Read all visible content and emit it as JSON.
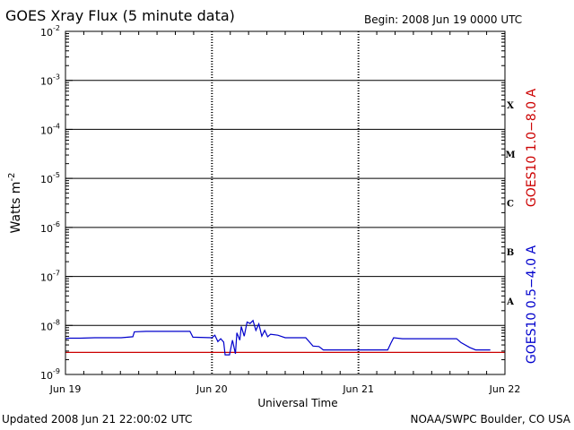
{
  "header": {
    "title": "GOES Xray Flux (5 minute data)",
    "begin": "Begin:  2008 Jun 19 0000 UTC"
  },
  "footer": {
    "updated": "Updated 2008 Jun 21 22:00:02 UTC",
    "credit": "NOAA/SWPC Boulder, CO USA"
  },
  "chart_data": {
    "type": "line",
    "title": "GOES Xray Flux (5 minute data)",
    "xlabel": "Universal Time",
    "ylabel": "Watts m",
    "ylabel_sup": "-2",
    "yscale": "log",
    "ylim": [
      1e-09,
      0.01
    ],
    "xlim": [
      "Jun 19",
      "Jun 22"
    ],
    "x_ticks": [
      "Jun 19",
      "Jun 20",
      "Jun 21",
      "Jun 22"
    ],
    "y_ticks": [
      {
        "base": "10",
        "exp": "-9",
        "value": -9
      },
      {
        "base": "10",
        "exp": "-8",
        "value": -8
      },
      {
        "base": "10",
        "exp": "-7",
        "value": -7
      },
      {
        "base": "10",
        "exp": "-6",
        "value": -6
      },
      {
        "base": "10",
        "exp": "-5",
        "value": -5
      },
      {
        "base": "10",
        "exp": "-4",
        "value": -4
      },
      {
        "base": "10",
        "exp": "-3",
        "value": -3
      },
      {
        "base": "10",
        "exp": "-2",
        "value": -2
      }
    ],
    "flare_classes": [
      {
        "label": "A",
        "value": -7.5
      },
      {
        "label": "B",
        "value": -6.5
      },
      {
        "label": "C",
        "value": -5.5
      },
      {
        "label": "M",
        "value": -4.5
      },
      {
        "label": "X",
        "value": -3.5
      }
    ],
    "grid": true,
    "series": [
      {
        "name": "GOES10 1.0−8.0 A",
        "color": "#cc0000",
        "points": [
          [
            0.0,
            -8.55
          ],
          [
            3.0,
            -8.55
          ]
        ]
      },
      {
        "name": "GOES10 0.5−4.0 A",
        "color": "#0000cc",
        "points": [
          [
            0.0,
            -8.27
          ],
          [
            0.02,
            -8.26
          ],
          [
            0.1,
            -8.26
          ],
          [
            0.2,
            -8.25
          ],
          [
            0.38,
            -8.25
          ],
          [
            0.46,
            -8.23
          ],
          [
            0.47,
            -8.13
          ],
          [
            0.55,
            -8.12
          ],
          [
            0.7,
            -8.12
          ],
          [
            0.85,
            -8.12
          ],
          [
            0.87,
            -8.24
          ],
          [
            1.0,
            -8.25
          ],
          [
            1.02,
            -8.2
          ],
          [
            1.04,
            -8.33
          ],
          [
            1.06,
            -8.27
          ],
          [
            1.08,
            -8.34
          ],
          [
            1.09,
            -8.6
          ],
          [
            1.12,
            -8.6
          ],
          [
            1.14,
            -8.3
          ],
          [
            1.16,
            -8.58
          ],
          [
            1.17,
            -8.15
          ],
          [
            1.19,
            -8.3
          ],
          [
            1.2,
            -8.02
          ],
          [
            1.22,
            -8.22
          ],
          [
            1.24,
            -7.93
          ],
          [
            1.26,
            -7.96
          ],
          [
            1.28,
            -7.9
          ],
          [
            1.3,
            -8.1
          ],
          [
            1.32,
            -7.97
          ],
          [
            1.34,
            -8.22
          ],
          [
            1.36,
            -8.1
          ],
          [
            1.38,
            -8.23
          ],
          [
            1.4,
            -8.18
          ],
          [
            1.45,
            -8.2
          ],
          [
            1.5,
            -8.25
          ],
          [
            1.64,
            -8.25
          ],
          [
            1.69,
            -8.42
          ],
          [
            1.73,
            -8.43
          ],
          [
            1.76,
            -8.5
          ],
          [
            2.0,
            -8.5
          ],
          [
            2.2,
            -8.5
          ],
          [
            2.22,
            -8.37
          ],
          [
            2.24,
            -8.25
          ],
          [
            2.3,
            -8.27
          ],
          [
            2.5,
            -8.27
          ],
          [
            2.67,
            -8.27
          ],
          [
            2.7,
            -8.35
          ],
          [
            2.76,
            -8.45
          ],
          [
            2.8,
            -8.5
          ],
          [
            2.9,
            -8.5
          ]
        ]
      }
    ]
  }
}
